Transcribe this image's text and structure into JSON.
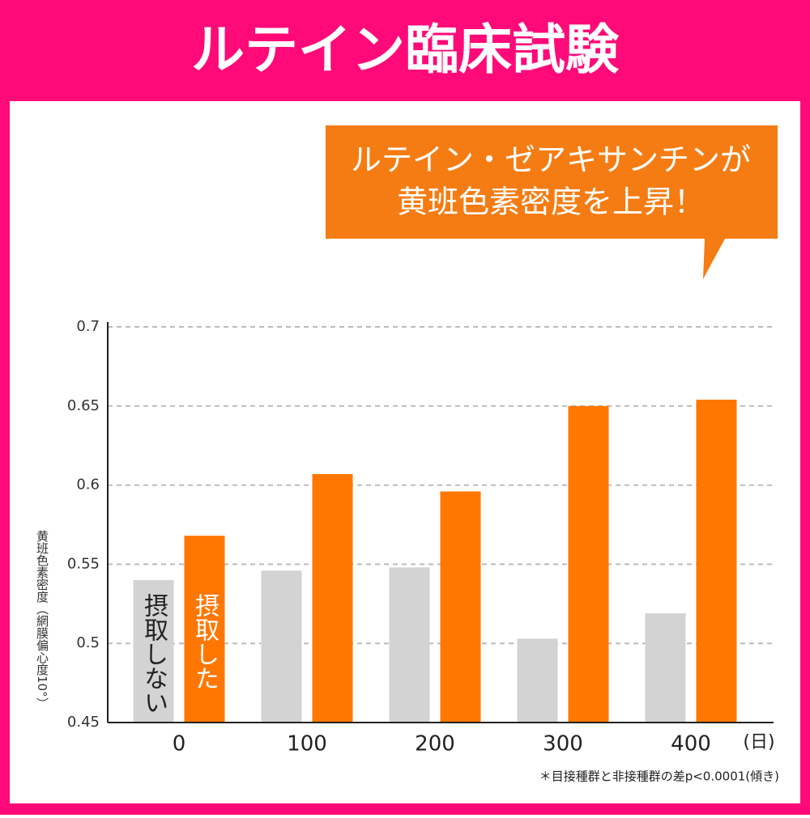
{
  "chart_data": {
    "type": "bar",
    "title": "ルテイン臨床試験",
    "callout": [
      "ルテイン・ゼアキサンチンが",
      "黄班色素密度を上昇！"
    ],
    "y_label": "黄班色素密度（網膜偏心度10°）",
    "x_unit": "(日)",
    "note": "＊目接種群と非接種群の差p<0.0001(傾き)",
    "categories": [
      "0",
      "100",
      "200",
      "300",
      "400"
    ],
    "series": [
      {
        "name": "摂取しない",
        "color": "#d3d3d3",
        "text_color": "#222222",
        "values": [
          0.54,
          0.546,
          0.548,
          0.503,
          0.519
        ]
      },
      {
        "name": "摂取した",
        "color": "#ff7700",
        "text_color": "#ffffff",
        "values": [
          0.568,
          0.607,
          0.596,
          0.65,
          0.654
        ]
      }
    ],
    "ylim": [
      0.45,
      0.7
    ],
    "yticks": [
      0.45,
      0.5,
      0.55,
      0.6,
      0.65,
      0.7
    ],
    "grid": true
  }
}
